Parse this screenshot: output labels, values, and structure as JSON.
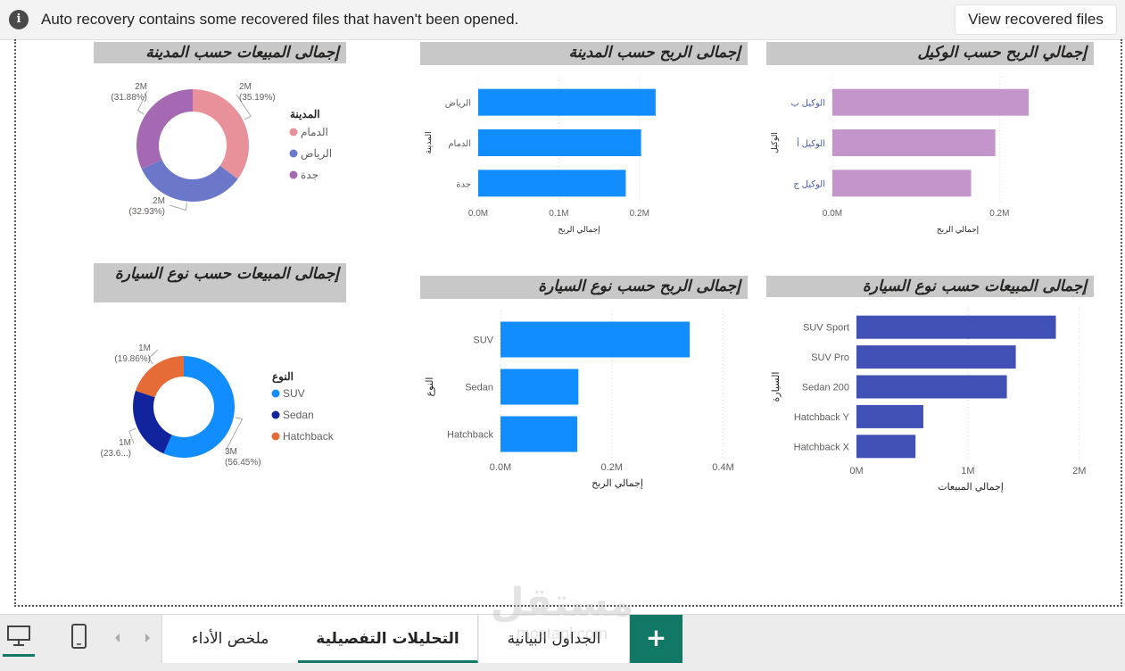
{
  "notification": {
    "icon": "info-icon",
    "message": "Auto recovery contains some recovered files that haven't been opened.",
    "button_label": "View recovered files"
  },
  "visuals": {
    "sales_by_city": {
      "title": "إجمالى المبيعات حسب المدينة",
      "legend_title": "المدينة",
      "chart_data": {
        "type": "pie",
        "variant": "donut",
        "categories": [
          "الدمام",
          "الرياض",
          "جدة"
        ],
        "values": [
          35.19,
          32.93,
          31.88
        ],
        "value_labels": [
          "2M",
          "2M",
          "2M"
        ],
        "percent_labels": [
          "(35.19%)",
          "(32.93%)",
          "(31.88%)"
        ],
        "colors": [
          "#E8919A",
          "#6B77C9",
          "#A569B3"
        ]
      }
    },
    "profit_by_city": {
      "title": "إجمالى الربح حسب المدينة",
      "chart_data": {
        "type": "bar",
        "orientation": "horizontal",
        "categories": [
          "الرياض",
          "الدمام",
          "جدة"
        ],
        "values": [
          0.22,
          0.202,
          0.183
        ],
        "xlim": [
          0,
          0.25
        ],
        "xticks": [
          0,
          0.1,
          0.2
        ],
        "xtick_labels": [
          "0.0M",
          "0.1M",
          "0.2M"
        ],
        "xlabel": "إجمالي الربح",
        "ylabel": "المدينة",
        "color": "#118DFF",
        "grid": true
      }
    },
    "profit_by_agent": {
      "title": "إجمالي الربح حسب الوكيل",
      "chart_data": {
        "type": "bar",
        "orientation": "horizontal",
        "categories": [
          "الوكيل ب",
          "الوكيل أ",
          "الوكيل ج"
        ],
        "values": [
          0.235,
          0.195,
          0.166
        ],
        "xlim": [
          0,
          0.3
        ],
        "xticks": [
          0,
          0.2
        ],
        "xtick_labels": [
          "0.0M",
          "0.2M"
        ],
        "xlabel": "إجمالي الربح",
        "ylabel": "الوكيل",
        "color": "#C495CB",
        "grid": true
      }
    },
    "sales_by_type": {
      "title": "إجمالى المبيعات حسب نوع السيارة",
      "legend_title": "النوع",
      "chart_data": {
        "type": "pie",
        "variant": "donut",
        "categories": [
          "SUV",
          "Sedan",
          "Hatchback"
        ],
        "values": [
          56.45,
          23.69,
          19.86
        ],
        "value_labels": [
          "3M",
          "1M",
          "1M"
        ],
        "percent_labels": [
          "(56.45%)",
          "(23.6...)",
          "(19.86%)"
        ],
        "colors": [
          "#118DFF",
          "#12239E",
          "#E66C37"
        ]
      }
    },
    "profit_by_type": {
      "title": "إجمالى الربح حسب نوع السيارة",
      "chart_data": {
        "type": "bar",
        "orientation": "horizontal",
        "categories": [
          "SUV",
          "Sedan",
          "Hatchback"
        ],
        "values": [
          0.34,
          0.14,
          0.138
        ],
        "xlim": [
          0,
          0.42
        ],
        "xticks": [
          0,
          0.2,
          0.4
        ],
        "xtick_labels": [
          "0.0M",
          "0.2M",
          "0.4M"
        ],
        "xlabel": "إجمالي الربح",
        "ylabel": "النوع",
        "color": "#118DFF",
        "grid": true
      }
    },
    "sales_by_car": {
      "title": "إجمالى المبيعات حسب نوع السيارة",
      "chart_data": {
        "type": "bar",
        "orientation": "horizontal",
        "categories": [
          "SUV Sport",
          "SUV Pro",
          "Sedan 200",
          "Hatchback Y",
          "Hatchback X"
        ],
        "values": [
          1.79,
          1.43,
          1.35,
          0.6,
          0.53
        ],
        "xlim": [
          0,
          2.05
        ],
        "xticks": [
          0,
          1,
          2
        ],
        "xtick_labels": [
          "0M",
          "1M",
          "2M"
        ],
        "xlabel": "إجمالي المبيعات",
        "ylabel": "السيارة",
        "color": "#4050B5",
        "grid": true
      }
    }
  },
  "footer": {
    "view_icons": [
      "desktop-icon",
      "phone-icon"
    ],
    "nav_icons": [
      "chevron-left-icon",
      "chevron-right-icon"
    ],
    "tabs": [
      {
        "label": "ملخص الأداء"
      },
      {
        "label": "التحليلات التفصيلية"
      },
      {
        "label": "الجداول البيانية"
      }
    ],
    "active_tab": 1,
    "add_tab_label": "+"
  },
  "watermark": {
    "text": "مستقل",
    "subtext": "mostaql.com"
  }
}
